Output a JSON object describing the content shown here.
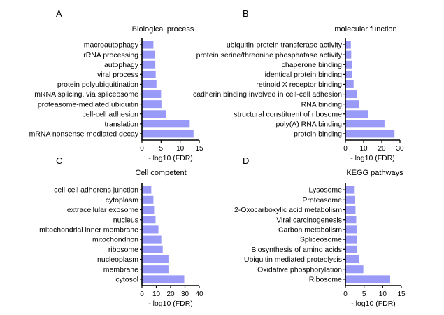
{
  "chart_data": [
    {
      "type": "bar",
      "orientation": "horizontal",
      "panel": "A",
      "title": "Biological process",
      "xlabel": "- log10 (FDR)",
      "xlim": [
        0,
        15
      ],
      "xticks": [
        0,
        5,
        10,
        15
      ],
      "categories": [
        "macroautophagy",
        "rRNA processing",
        "autophagy",
        "viral process",
        "protein polyubiquitination",
        "mRNA splicing, via spliceosome",
        "proteasome-mediated ubiquitin",
        "cell-cell adhesion",
        "translation",
        "mRNA nonsense-mediated decay"
      ],
      "values": [
        3.0,
        3.3,
        3.5,
        3.6,
        3.8,
        5.0,
        5.1,
        6.3,
        12.5,
        13.5
      ],
      "color": "#9a9af8"
    },
    {
      "type": "bar",
      "orientation": "horizontal",
      "panel": "B",
      "title": "molecular function",
      "xlabel": "- log10 (FDR)",
      "xlim": [
        0,
        30
      ],
      "xticks": [
        0,
        10,
        20,
        30
      ],
      "xtick_labels": [
        "0",
        "10",
        "20",
        "30"
      ],
      "categories": [
        "ubiquitin-protein transferase activity",
        "protein serine/threonine phosphatase activity",
        "chaperone binding",
        "identical protein binding",
        "retinoid X receptor binding",
        "cadherin binding involved in cell-cell adhesion",
        "RNA binding",
        "structural constituent of ribosome",
        "poly(A) RNA binding",
        "protein binding"
      ],
      "values": [
        3.0,
        3.2,
        3.5,
        3.8,
        4.5,
        6.5,
        7.5,
        12.5,
        21.5,
        27.0
      ],
      "color": "#9a9af8"
    },
    {
      "type": "bar",
      "orientation": "horizontal",
      "panel": "C",
      "title": "Cell competent",
      "xlabel": "- log10 (FDR)",
      "xlim": [
        0,
        40
      ],
      "xticks": [
        0,
        10,
        20,
        30,
        40
      ],
      "categories": [
        "cell-cell adherens junction",
        "cytoplasm",
        "extracellular exosome",
        "nucleus",
        "mitochondrial inner membrane",
        "mitochondrion",
        "ribosome",
        "nucleoplasm",
        "membrane",
        "cytosol"
      ],
      "values": [
        6.5,
        8.0,
        8.5,
        9.5,
        11.5,
        13.5,
        14.5,
        18.5,
        18.5,
        29.5
      ],
      "color": "#9a9af8"
    },
    {
      "type": "bar",
      "orientation": "horizontal",
      "panel": "D",
      "title": "KEGG pathways",
      "xlabel": "- log10 (FDR)",
      "xlim": [
        0,
        15
      ],
      "xticks": [
        0,
        5,
        10,
        15
      ],
      "categories": [
        "Lysosome",
        "Proteasome",
        "2-Oxocarboxylic acid metabolism",
        "Viral carcinogenesis",
        "Carbon metabolism",
        "Spliceosome",
        "Biosynthesis of amino acids",
        "Ubiquitin mediated proteolysis",
        "Oxidative phosphorylation",
        "Ribosome"
      ],
      "values": [
        2.3,
        2.5,
        2.7,
        2.9,
        3.0,
        3.1,
        3.2,
        3.6,
        4.8,
        12.0
      ],
      "color": "#9a9af8"
    }
  ]
}
